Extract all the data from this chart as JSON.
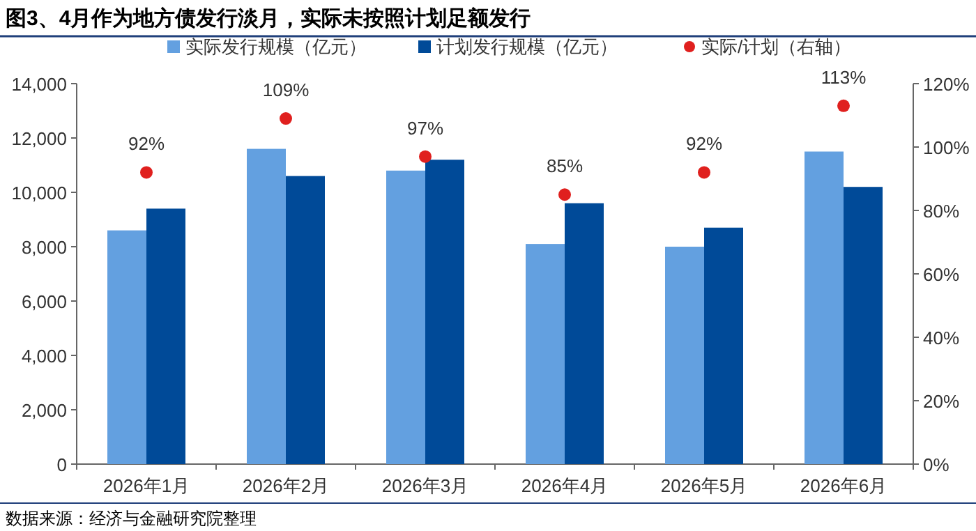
{
  "chart_data": {
    "type": "bar",
    "title": "图3、4月作为地方债发行淡月，实际未按照计划足额发行",
    "annotations": [
      "数据来源：经济与金融研究院整理"
    ],
    "categories": [
      "2026年1月",
      "2026年2月",
      "2026年3月",
      "2026年4月",
      "2026年5月",
      "2026年6月"
    ],
    "series": [
      {
        "name": "实际发行规模（亿元）",
        "color": "#63a0e0",
        "values": [
          8600,
          11600,
          10800,
          8100,
          8000,
          11500
        ]
      },
      {
        "name": "计划发行规模（亿元）",
        "color": "#004a98",
        "values": [
          9400,
          10600,
          11200,
          9600,
          8700,
          10200
        ]
      },
      {
        "name": "实际/计划（右轴）",
        "color": "#e0201e",
        "type": "scatter",
        "axis": "y2",
        "marker": "circle",
        "values": [
          92,
          109,
          97,
          85,
          92,
          113
        ],
        "value_labels": [
          "92%",
          "109%",
          "97%",
          "85%",
          "92%",
          "113%"
        ]
      }
    ],
    "ylim": [
      0,
      14000
    ],
    "yticks": [
      {
        "value": 0,
        "label": "0"
      },
      {
        "value": 2000,
        "label": "2,000"
      },
      {
        "value": 4000,
        "label": "4,000"
      },
      {
        "value": 6000,
        "label": "6,000"
      },
      {
        "value": 8000,
        "label": "8,000"
      },
      {
        "value": 10000,
        "label": "10,000"
      },
      {
        "value": 12000,
        "label": "12,000"
      },
      {
        "value": 14000,
        "label": "14,000"
      }
    ],
    "y2lim": [
      0,
      120
    ],
    "y2ticks": [
      {
        "value": 0,
        "label": "0%"
      },
      {
        "value": 20,
        "label": "20%"
      },
      {
        "value": 40,
        "label": "40%"
      },
      {
        "value": 60,
        "label": "60%"
      },
      {
        "value": 80,
        "label": "80%"
      },
      {
        "value": 100,
        "label": "100%"
      },
      {
        "value": 120,
        "label": "120%"
      }
    ],
    "grid": false,
    "legend": "top"
  }
}
